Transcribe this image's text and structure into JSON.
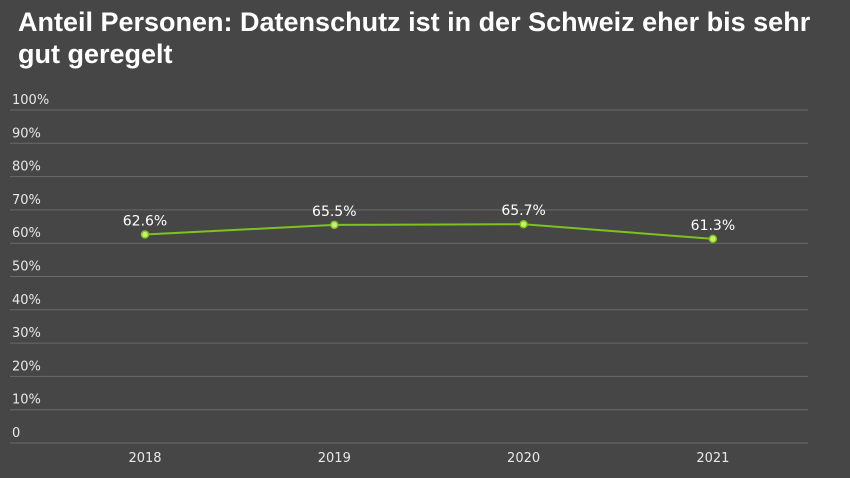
{
  "title": "Anteil Personen: Datenschutz ist in der Schweiz eher bis sehr gut geregelt",
  "colors": {
    "background": "#464646",
    "line": "#7dc21e",
    "marker_fill": "#c8f06a",
    "grid": "#6a6a6a",
    "text": "#ffffff",
    "tick_text": "#e8e8e8"
  },
  "chart_data": {
    "type": "line",
    "title": "Anteil Personen: Datenschutz ist in der Schweiz eher bis sehr gut geregelt",
    "categories": [
      "2018",
      "2019",
      "2020",
      "2021"
    ],
    "series": [
      {
        "values": [
          62.6,
          65.5,
          65.7,
          61.3
        ]
      }
    ],
    "data_labels": [
      "62.6%",
      "65.5%",
      "65.7%",
      "61.3%"
    ],
    "yticks": [
      "0",
      "10%",
      "20%",
      "30%",
      "40%",
      "50%",
      "60%",
      "70%",
      "80%",
      "90%",
      "100%"
    ],
    "ylim": [
      0,
      100
    ],
    "grid": true,
    "legend": "none",
    "xlabel": "",
    "ylabel": ""
  }
}
